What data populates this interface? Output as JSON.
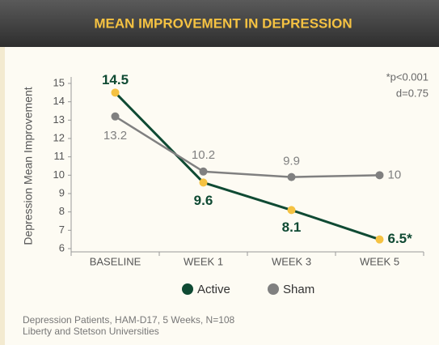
{
  "chart_data": {
    "type": "line",
    "title": "MEAN IMPROVEMENT IN DEPRESSION",
    "y_label": "Depression Mean Improvement",
    "annotations": [
      "*p<0.001",
      "d=0.75"
    ],
    "footnotes": [
      "Depression Patients, HAM-D17, 5 Weeks, N=108",
      "Liberty and Stetson Universities"
    ],
    "categories": [
      "BASELINE",
      "WEEK 1",
      "WEEK 3",
      "WEEK 5"
    ],
    "series": [
      {
        "name": "Active",
        "color": "#0f4a33",
        "marker_color": "#f5c242",
        "values": [
          14.5,
          9.6,
          8.1,
          6.5
        ],
        "value_labels": [
          "14.5",
          "9.6",
          "8.1",
          "6.5*"
        ]
      },
      {
        "name": "Sham",
        "color": "#808080",
        "marker_color": "#808080",
        "values": [
          13.2,
          10.2,
          9.9,
          10
        ]
      }
    ],
    "ylim": [
      6,
      15
    ],
    "yticks": [
      6,
      7,
      8,
      9,
      10,
      11,
      12,
      13,
      14,
      15
    ]
  }
}
